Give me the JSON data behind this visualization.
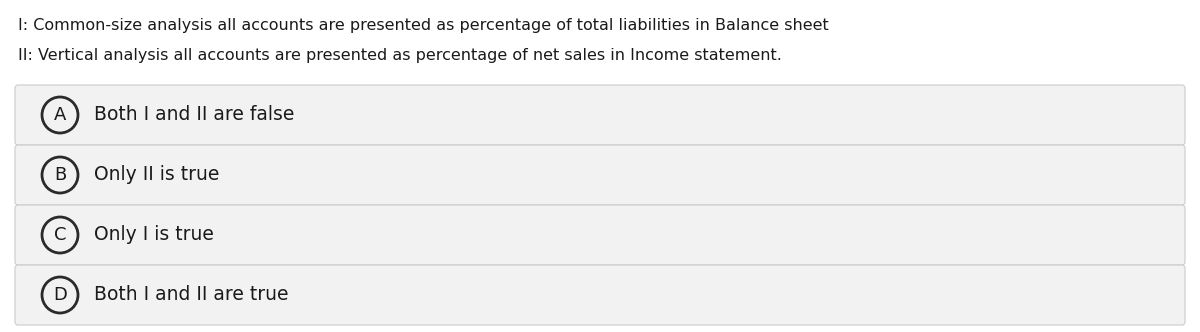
{
  "background_color": "#ffffff",
  "question_line1": "I: Common-size analysis all accounts are presented as percentage of total liabilities in Balance sheet",
  "question_line2": "II: Vertical analysis all accounts are presented as percentage of net sales in Income statement.",
  "options": [
    {
      "letter": "A",
      "text": "Both I and II are false"
    },
    {
      "letter": "B",
      "text": "Only II is true"
    },
    {
      "letter": "C",
      "text": "Only I is true"
    },
    {
      "letter": "D",
      "text": "Both I and II are true"
    }
  ],
  "option_bg_color": "#f2f2f2",
  "option_border_color": "#cccccc",
  "circle_edge_color": "#2a2a2a",
  "circle_face_color": "#f2f2f2",
  "text_color": "#1a1a1a",
  "question_fontsize": 11.5,
  "option_fontsize": 13.5,
  "letter_fontsize": 13
}
